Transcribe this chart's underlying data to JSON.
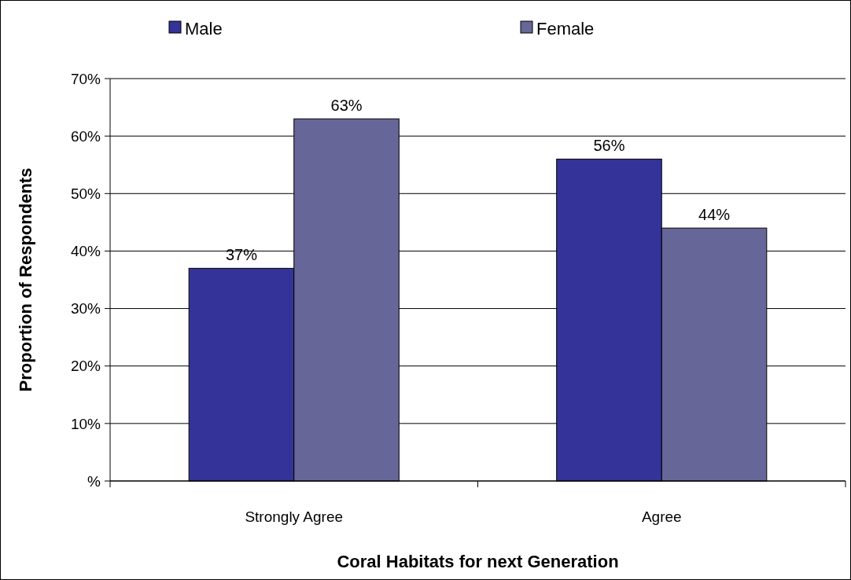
{
  "chart_data": {
    "type": "bar",
    "xlabel": "Coral Habitats for next Generation",
    "ylabel": "Proportion of Respondents",
    "categories": [
      "Strongly Agree",
      "Agree"
    ],
    "series": [
      {
        "name": "Male",
        "color": "#333399",
        "values": [
          37,
          56
        ],
        "value_labels": [
          "37%",
          "56%"
        ]
      },
      {
        "name": "Female",
        "color": "#666699",
        "values": [
          63,
          44
        ],
        "value_labels": [
          "63%",
          "44%"
        ]
      }
    ],
    "ylim": [
      0,
      70
    ],
    "yticks": [
      {
        "value": 0,
        "label": "%"
      },
      {
        "value": 10,
        "label": "10%"
      },
      {
        "value": 20,
        "label": "20%"
      },
      {
        "value": 30,
        "label": "30%"
      },
      {
        "value": 40,
        "label": "40%"
      },
      {
        "value": 50,
        "label": "50%"
      },
      {
        "value": 60,
        "label": "60%"
      },
      {
        "value": 70,
        "label": "70%"
      }
    ],
    "grid": "y",
    "legend": "top"
  }
}
